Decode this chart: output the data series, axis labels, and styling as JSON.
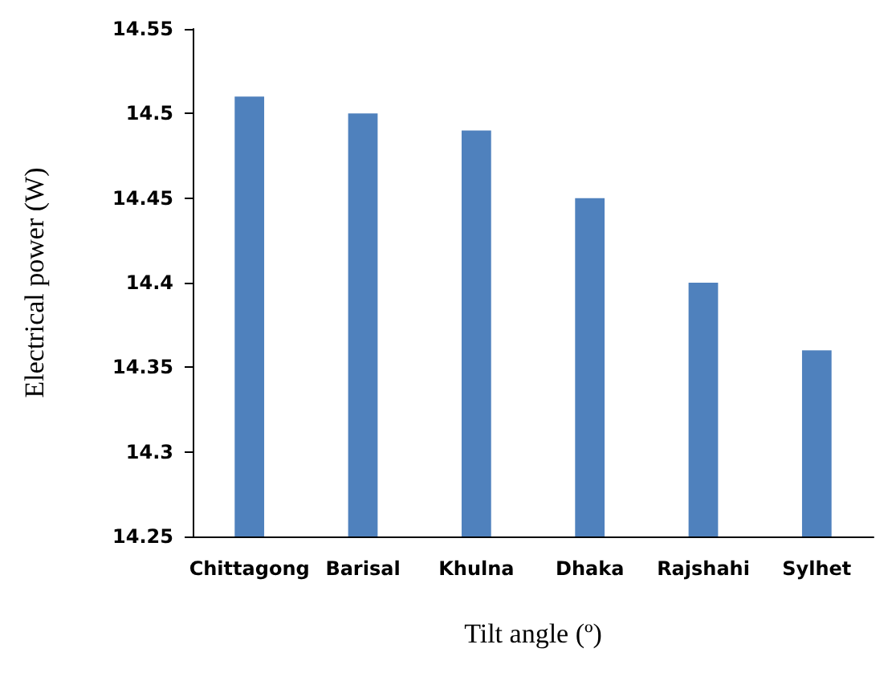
{
  "chart_data": {
    "type": "bar",
    "xlabel": "Tilt angle (º)",
    "ylabel": "Electrical power (W)",
    "categories": [
      "Chittagong",
      "Barisal",
      "Khulna",
      "Dhaka",
      "Rajshahi",
      "Sylhet"
    ],
    "values": [
      14.51,
      14.5,
      14.49,
      14.45,
      14.4,
      14.36
    ],
    "color": "#4f81bd",
    "ylim": [
      14.25,
      14.55
    ],
    "yticks": [
      14.25,
      14.3,
      14.35,
      14.4,
      14.45,
      14.5,
      14.55
    ],
    "grid": false
  }
}
